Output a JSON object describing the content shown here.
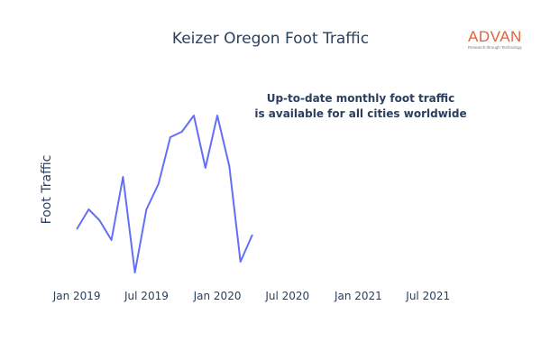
{
  "chart_data": {
    "type": "line",
    "title": "Keizer Oregon Foot Traffic",
    "xlabel": "",
    "ylabel": "Foot Traffic",
    "x": [
      "2019-01",
      "2019-02",
      "2019-03",
      "2019-04",
      "2019-05",
      "2019-06",
      "2019-07",
      "2019-08",
      "2019-09",
      "2019-10",
      "2019-11",
      "2019-12",
      "2020-01",
      "2020-02",
      "2020-03",
      "2020-04"
    ],
    "x_ticks": [
      "Jan 2019",
      "Jul 2019",
      "Jan 2020",
      "Jul 2020",
      "Jan 2021",
      "Jul 2021"
    ],
    "x_range": [
      "2018-12-20",
      "2021-10-15"
    ],
    "series": [
      {
        "values": [
          28,
          39,
          33,
          22,
          57,
          4,
          39,
          53,
          79,
          82,
          91,
          62,
          91,
          63,
          10,
          25
        ]
      }
    ],
    "ylim": [
      0,
      100
    ],
    "y_tick_labels_visible": false,
    "grid": false,
    "line_color": "#636efa"
  },
  "annotation": {
    "line1": "Up-to-date monthly foot traffic",
    "line2": "is available for all cities worldwide"
  },
  "logo": {
    "word": "ADVAN",
    "tagline": "Research through Technology",
    "color": "#e0623a"
  }
}
